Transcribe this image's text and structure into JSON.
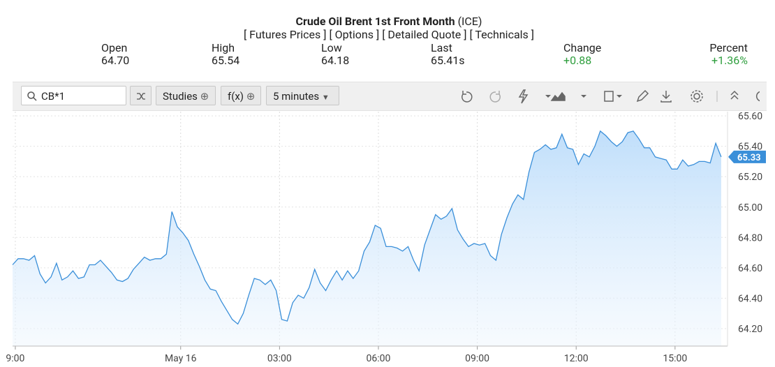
{
  "header": {
    "title": "Crude Oil Brent 1st Front Month",
    "exchange": "(ICE)",
    "links": [
      "[ Futures Prices ]",
      "[ Options ]",
      "[ Detailed Quote ]",
      "[ Technicals ]"
    ]
  },
  "quote": [
    {
      "label": "Open",
      "value": "64.70"
    },
    {
      "label": "High",
      "value": "65.54"
    },
    {
      "label": "Low",
      "value": "64.18"
    },
    {
      "label": "Last",
      "value": "65.41s"
    },
    {
      "label": "Change",
      "value": "+0.88"
    },
    {
      "label": "Percent",
      "value": "+1.36%"
    }
  ],
  "toolbar": {
    "search": "CB*1",
    "studies": "Studies",
    "function": "f(x)",
    "interval": "5 minutes"
  },
  "chart_data": {
    "type": "area",
    "color": "#3a8fd9",
    "grid": true,
    "x": [
      0,
      10,
      20,
      30,
      40,
      50,
      60,
      70,
      80,
      90,
      100,
      110,
      120,
      130,
      140,
      150,
      160,
      170,
      180,
      190,
      200,
      210,
      220,
      230,
      240,
      250,
      260,
      270,
      280,
      290,
      300,
      310,
      320,
      330,
      340,
      350,
      360,
      370,
      380,
      390,
      400,
      410,
      420,
      430,
      440,
      450,
      460,
      470,
      480,
      490,
      500,
      510,
      520,
      530,
      540,
      550,
      560,
      570,
      580,
      590,
      600,
      610,
      620,
      630,
      640,
      650,
      660,
      670,
      680,
      690,
      700,
      710,
      720,
      730,
      740,
      750,
      760,
      770,
      780,
      790,
      800,
      810,
      820,
      830,
      840,
      850,
      860,
      870,
      880,
      890,
      900,
      910,
      920,
      930,
      940,
      950,
      960,
      970,
      980,
      990,
      1000,
      1010,
      1020,
      1030,
      1040,
      1050,
      1060,
      1070,
      1080,
      1090,
      1100,
      1110,
      1120,
      1130,
      1140,
      1150,
      1160,
      1170,
      1180,
      1190,
      1200,
      1210,
      1220,
      1230,
      1240,
      1250,
      1260,
      1270,
      1280,
      1290
    ],
    "values": [
      64.62,
      64.66,
      64.66,
      64.65,
      64.68,
      64.56,
      64.5,
      64.54,
      64.63,
      64.52,
      64.54,
      64.58,
      64.53,
      64.54,
      64.62,
      64.62,
      64.65,
      64.61,
      64.57,
      64.52,
      64.51,
      64.53,
      64.59,
      64.63,
      64.67,
      64.65,
      64.66,
      64.66,
      64.69,
      64.97,
      64.87,
      64.83,
      64.78,
      64.69,
      64.61,
      64.52,
      64.46,
      64.45,
      64.38,
      64.32,
      64.26,
      64.23,
      64.3,
      64.42,
      64.53,
      64.52,
      64.49,
      64.52,
      64.45,
      64.26,
      64.25,
      64.37,
      64.42,
      64.4,
      64.47,
      64.59,
      64.5,
      64.45,
      64.52,
      64.58,
      64.52,
      64.58,
      64.53,
      64.58,
      64.71,
      64.77,
      64.88,
      64.86,
      64.74,
      64.74,
      64.73,
      64.71,
      64.74,
      64.65,
      64.58,
      64.75,
      64.85,
      64.95,
      64.92,
      64.94,
      64.99,
      64.85,
      64.79,
      64.74,
      64.76,
      64.75,
      64.76,
      64.68,
      64.65,
      64.82,
      64.93,
      65.02,
      65.08,
      65.05,
      65.23,
      65.36,
      65.38,
      65.41,
      65.38,
      65.39,
      65.48,
      65.39,
      65.38,
      65.28,
      65.35,
      65.33,
      65.4,
      65.5,
      65.47,
      65.43,
      65.4,
      65.43,
      65.49,
      65.5,
      65.45,
      65.39,
      65.39,
      65.33,
      65.32,
      65.31,
      65.25,
      65.25,
      65.31,
      65.27,
      65.28,
      65.3,
      65.3,
      65.29,
      65.42,
      65.33
    ],
    "xlim": [
      0,
      1299
    ],
    "xticks": [
      {
        "value": 5,
        "label": "9:00"
      },
      {
        "value": 306,
        "label": "May 16"
      },
      {
        "value": 486,
        "label": "03:00"
      },
      {
        "value": 666,
        "label": "06:00"
      },
      {
        "value": 846,
        "label": "09:00"
      },
      {
        "value": 1026,
        "label": "12:00"
      },
      {
        "value": 1206,
        "label": "15:00"
      }
    ],
    "ylim": [
      64.085,
      65.628
    ],
    "yticks": [
      {
        "value": 64.2,
        "label": "64.20"
      },
      {
        "value": 64.4,
        "label": "64.40"
      },
      {
        "value": 64.6,
        "label": "64.60"
      },
      {
        "value": 64.8,
        "label": "64.80"
      },
      {
        "value": 65.0,
        "label": "65.00"
      },
      {
        "value": 65.2,
        "label": "65.20"
      },
      {
        "value": 65.4,
        "label": "65.40"
      },
      {
        "value": 65.6,
        "label": "65.60"
      }
    ]
  }
}
